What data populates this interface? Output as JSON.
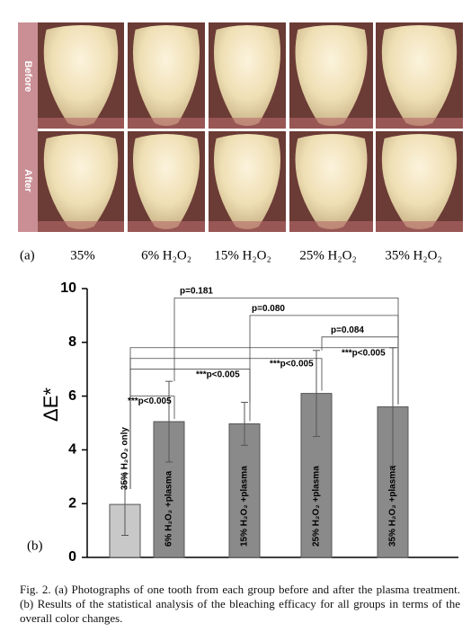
{
  "figure_a": {
    "panel_label": "(a)",
    "row_labels": [
      "Before",
      "After"
    ],
    "columns": [
      "35%",
      "6% H₂O₂",
      "15% H₂O₂",
      "25% H₂O₂",
      "35% H₂O₂"
    ]
  },
  "chart_data": {
    "type": "bar",
    "panel_label": "(b)",
    "y_label": "ΔE*",
    "categories": [
      "35% H₂O₂ only",
      "6% H₂O₂ +plasma",
      "15% H₂O₂ +plasma",
      "25% H₂O₂ +plasma",
      "35% H₂O₂ +plasma"
    ],
    "values": [
      1.97,
      5.05,
      4.97,
      6.1,
      5.6
    ],
    "errors": [
      1.15,
      1.5,
      0.8,
      1.6,
      2.2
    ],
    "colors": [
      "#c8c8c8",
      "#8a8a8a",
      "#8a8a8a",
      "#8a8a8a",
      "#8a8a8a"
    ],
    "ylim": [
      0,
      10
    ],
    "yticks": [
      0,
      2,
      4,
      6,
      8,
      10
    ],
    "annotations": [
      "p=0.181",
      "p=0.080",
      "p=0.084",
      "***p<0.005",
      "***p<0.005",
      "***p<0.005",
      "***p<0.005"
    ]
  },
  "caption": "Fig. 2.  (a) Photographs of one tooth from each group before and after the plasma treatment. (b) Results of the statistical analysis of the bleaching efficacy for all groups in terms of the overall color changes."
}
